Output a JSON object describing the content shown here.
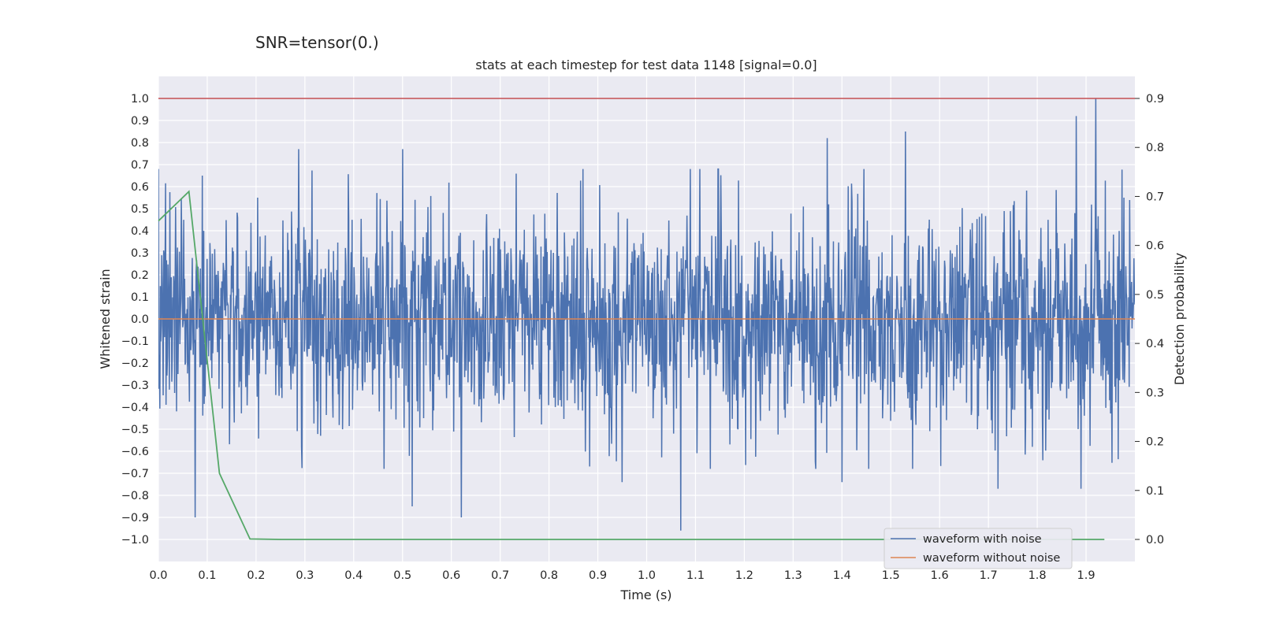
{
  "chart_data": {
    "type": "line",
    "suptitle": "SNR=tensor(0.)",
    "title": "stats at each timestep for test data 1148 [signal=0.0]",
    "xlabel": "Time (s)",
    "ylabel": "Whitened strain",
    "ylabel_right": "Detection probability",
    "xlim": [
      0.0,
      2.0
    ],
    "ylim": [
      -1.1,
      1.1
    ],
    "ylim_right": [
      -0.045,
      0.945
    ],
    "x_ticks": [
      "0.0",
      "0.1",
      "0.2",
      "0.3",
      "0.4",
      "0.5",
      "0.6",
      "0.7",
      "0.8",
      "0.9",
      "1.0",
      "1.1",
      "1.2",
      "1.3",
      "1.4",
      "1.5",
      "1.6",
      "1.7",
      "1.8",
      "1.9"
    ],
    "y_ticks": [
      "1.0",
      "0.9",
      "0.8",
      "0.7",
      "0.6",
      "0.5",
      "0.4",
      "0.3",
      "0.2",
      "0.1",
      "0.0",
      "−0.1",
      "−0.2",
      "−0.3",
      "−0.4",
      "−0.5",
      "−0.6",
      "−0.7",
      "−0.8",
      "−0.9",
      "−1.0"
    ],
    "y_ticks_right": [
      "0.9",
      "0.8",
      "0.7",
      "0.6",
      "0.5",
      "0.4",
      "0.3",
      "0.2",
      "0.1",
      "0.0"
    ],
    "threshold_line": {
      "y": 1.0,
      "color": "#c44e52"
    },
    "series": [
      {
        "name": "waveform with noise",
        "color": "#4c72b0",
        "axis": "left",
        "generated": true,
        "num_samples": 2048,
        "std": 0.25,
        "spikes": [
          [
            0.075,
            -0.9
          ],
          [
            0.09,
            0.65
          ],
          [
            0.287,
            0.77
          ],
          [
            0.5,
            0.77
          ],
          [
            0.52,
            -0.85
          ],
          [
            0.62,
            -0.9
          ],
          [
            0.95,
            -0.74
          ],
          [
            1.07,
            -0.96
          ],
          [
            1.37,
            0.82
          ],
          [
            1.4,
            -0.74
          ],
          [
            1.53,
            0.85
          ],
          [
            1.72,
            -0.77
          ],
          [
            1.88,
            0.92
          ],
          [
            1.92,
            1.0
          ],
          [
            1.89,
            -0.77
          ]
        ]
      },
      {
        "name": "waveform without noise",
        "color": "#dd8452",
        "axis": "left",
        "x": [
          0.0,
          2.0
        ],
        "y": [
          0.0,
          0.0
        ]
      },
      {
        "name": "detection probability",
        "color": "#55a868",
        "axis": "right",
        "x": [
          0.0,
          0.0625,
          0.125,
          0.1875,
          0.25,
          1.0,
          1.9375
        ],
        "y": [
          0.65,
          0.71,
          0.135,
          0.001,
          0.0,
          0.0,
          0.0
        ]
      }
    ],
    "legend": {
      "position": "lower-right",
      "entries": [
        {
          "label": "waveform with noise",
          "color": "#4c72b0"
        },
        {
          "label": "waveform without noise",
          "color": "#dd8452"
        }
      ]
    },
    "grid": true
  }
}
